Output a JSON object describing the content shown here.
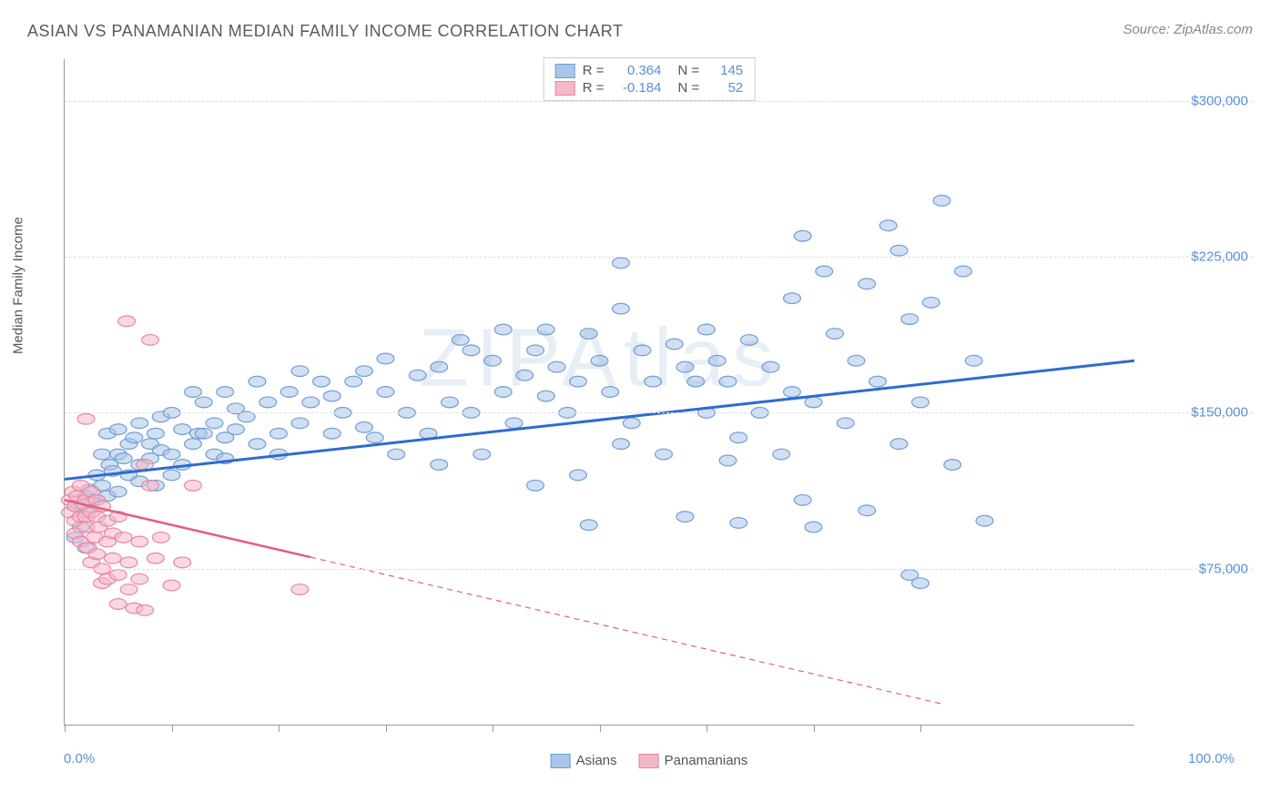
{
  "title": "ASIAN VS PANAMANIAN MEDIAN FAMILY INCOME CORRELATION CHART",
  "source": "Source: ZipAtlas.com",
  "watermark": "ZIPAtlas",
  "chart": {
    "type": "scatter",
    "ylabel": "Median Family Income",
    "xlim": [
      0,
      100
    ],
    "ylim": [
      0,
      320000
    ],
    "y_ticks": [
      {
        "value": 75000,
        "label": "$75,000"
      },
      {
        "value": 150000,
        "label": "$150,000"
      },
      {
        "value": 225000,
        "label": "$225,000"
      },
      {
        "value": 300000,
        "label": "$300,000"
      }
    ],
    "x_ticks_pct": [
      0,
      10,
      20,
      30,
      40,
      50,
      60,
      70,
      80
    ],
    "x_axis_left_label": "0.0%",
    "x_axis_right_label": "100.0%",
    "background_color": "#ffffff",
    "grid_color": "#dddddd",
    "axis_color": "#999999",
    "label_color": "#555555",
    "value_color": "#5b8fd6",
    "marker_radius": 8,
    "marker_opacity": 0.55,
    "series": [
      {
        "name": "Asians",
        "color_fill": "#a9c5e8",
        "color_stroke": "#6f9ed6",
        "r_stat": "0.364",
        "n_stat": "145",
        "trend": {
          "x1": 0,
          "y1": 118000,
          "x2": 100,
          "y2": 175000,
          "solid_to_x": 100,
          "stroke": "#2e6bd1",
          "width": 3
        },
        "points": [
          [
            1,
            90000
          ],
          [
            1,
            105000
          ],
          [
            1.5,
            95000
          ],
          [
            2,
            110000
          ],
          [
            2,
            102000
          ],
          [
            2,
            85000
          ],
          [
            2.3,
            113000
          ],
          [
            2.5,
            107000
          ],
          [
            3,
            120000
          ],
          [
            3,
            108000
          ],
          [
            3.5,
            130000
          ],
          [
            3.5,
            115000
          ],
          [
            4,
            110000
          ],
          [
            4,
            140000
          ],
          [
            4.2,
            125000
          ],
          [
            4.5,
            122000
          ],
          [
            5,
            130000
          ],
          [
            5,
            112000
          ],
          [
            5,
            142000
          ],
          [
            5.5,
            128000
          ],
          [
            6,
            135000
          ],
          [
            6,
            120000
          ],
          [
            6.5,
            138000
          ],
          [
            7,
            125000
          ],
          [
            7,
            117000
          ],
          [
            7,
            145000
          ],
          [
            8,
            135000
          ],
          [
            8,
            128000
          ],
          [
            8.5,
            115000
          ],
          [
            8.5,
            140000
          ],
          [
            9,
            132000
          ],
          [
            9,
            148000
          ],
          [
            10,
            150000
          ],
          [
            10,
            130000
          ],
          [
            10,
            120000
          ],
          [
            11,
            142000
          ],
          [
            11,
            125000
          ],
          [
            12,
            160000
          ],
          [
            12,
            135000
          ],
          [
            12.5,
            140000
          ],
          [
            13,
            140000
          ],
          [
            13,
            155000
          ],
          [
            14,
            145000
          ],
          [
            14,
            130000
          ],
          [
            15,
            138000
          ],
          [
            15,
            160000
          ],
          [
            15,
            128000
          ],
          [
            16,
            142000
          ],
          [
            16,
            152000
          ],
          [
            17,
            148000
          ],
          [
            18,
            135000
          ],
          [
            18,
            165000
          ],
          [
            19,
            155000
          ],
          [
            20,
            140000
          ],
          [
            20,
            130000
          ],
          [
            21,
            160000
          ],
          [
            22,
            170000
          ],
          [
            22,
            145000
          ],
          [
            23,
            155000
          ],
          [
            24,
            165000
          ],
          [
            25,
            158000
          ],
          [
            25,
            140000
          ],
          [
            26,
            150000
          ],
          [
            27,
            165000
          ],
          [
            28,
            170000
          ],
          [
            28,
            143000
          ],
          [
            29,
            138000
          ],
          [
            30,
            176000
          ],
          [
            30,
            160000
          ],
          [
            31,
            130000
          ],
          [
            32,
            150000
          ],
          [
            33,
            168000
          ],
          [
            34,
            140000
          ],
          [
            35,
            172000
          ],
          [
            35,
            125000
          ],
          [
            36,
            155000
          ],
          [
            37,
            185000
          ],
          [
            38,
            180000
          ],
          [
            38,
            150000
          ],
          [
            39,
            130000
          ],
          [
            40,
            175000
          ],
          [
            41,
            190000
          ],
          [
            41,
            160000
          ],
          [
            42,
            145000
          ],
          [
            43,
            168000
          ],
          [
            44,
            180000
          ],
          [
            44,
            115000
          ],
          [
            45,
            190000
          ],
          [
            45,
            158000
          ],
          [
            46,
            172000
          ],
          [
            47,
            150000
          ],
          [
            48,
            165000
          ],
          [
            48,
            120000
          ],
          [
            49,
            188000
          ],
          [
            49,
            96000
          ],
          [
            50,
            175000
          ],
          [
            51,
            160000
          ],
          [
            52,
            135000
          ],
          [
            52,
            200000
          ],
          [
            52,
            222000
          ],
          [
            53,
            145000
          ],
          [
            54,
            180000
          ],
          [
            55,
            165000
          ],
          [
            56,
            130000
          ],
          [
            57,
            183000
          ],
          [
            58,
            100000
          ],
          [
            58,
            172000
          ],
          [
            59,
            165000
          ],
          [
            60,
            150000
          ],
          [
            60,
            190000
          ],
          [
            61,
            175000
          ],
          [
            62,
            127000
          ],
          [
            62,
            165000
          ],
          [
            63,
            138000
          ],
          [
            63,
            97000
          ],
          [
            64,
            185000
          ],
          [
            65,
            150000
          ],
          [
            66,
            172000
          ],
          [
            67,
            130000
          ],
          [
            68,
            205000
          ],
          [
            68,
            160000
          ],
          [
            69,
            108000
          ],
          [
            69,
            235000
          ],
          [
            70,
            155000
          ],
          [
            70,
            95000
          ],
          [
            71,
            218000
          ],
          [
            72,
            188000
          ],
          [
            73,
            145000
          ],
          [
            74,
            175000
          ],
          [
            75,
            212000
          ],
          [
            75,
            103000
          ],
          [
            76,
            165000
          ],
          [
            77,
            240000
          ],
          [
            78,
            135000
          ],
          [
            78,
            228000
          ],
          [
            79,
            195000
          ],
          [
            79,
            72000
          ],
          [
            80,
            155000
          ],
          [
            80,
            68000
          ],
          [
            81,
            203000
          ],
          [
            82,
            252000
          ],
          [
            83,
            125000
          ],
          [
            84,
            218000
          ],
          [
            85,
            175000
          ],
          [
            86,
            98000
          ]
        ]
      },
      {
        "name": "Panamanians",
        "color_fill": "#f4b8c8",
        "color_stroke": "#e886a3",
        "r_stat": "-0.184",
        "n_stat": "52",
        "trend": {
          "x1": 0,
          "y1": 108000,
          "x2": 82,
          "y2": 10000,
          "solid_to_x": 23,
          "stroke": "#e55b8a",
          "width": 2.5
        },
        "points": [
          [
            0.5,
            108000
          ],
          [
            0.5,
            102000
          ],
          [
            0.8,
            112000
          ],
          [
            1,
            105000
          ],
          [
            1,
            98000
          ],
          [
            1,
            92000
          ],
          [
            1.2,
            110000
          ],
          [
            1.5,
            100000
          ],
          [
            1.5,
            115000
          ],
          [
            1.5,
            88000
          ],
          [
            1.8,
            106000
          ],
          [
            2,
            108000
          ],
          [
            2,
            95000
          ],
          [
            2,
            100000
          ],
          [
            2,
            147000
          ],
          [
            2.2,
            85000
          ],
          [
            2.5,
            102000
          ],
          [
            2.5,
            112000
          ],
          [
            2.5,
            78000
          ],
          [
            2.8,
            90000
          ],
          [
            3,
            100000
          ],
          [
            3,
            82000
          ],
          [
            3,
            108000
          ],
          [
            3.2,
            95000
          ],
          [
            3.5,
            75000
          ],
          [
            3.5,
            105000
          ],
          [
            3.5,
            68000
          ],
          [
            4,
            98000
          ],
          [
            4,
            88000
          ],
          [
            4,
            70000
          ],
          [
            4.5,
            92000
          ],
          [
            4.5,
            80000
          ],
          [
            5,
            100000
          ],
          [
            5,
            72000
          ],
          [
            5,
            58000
          ],
          [
            5.5,
            90000
          ],
          [
            5.8,
            194000
          ],
          [
            6,
            78000
          ],
          [
            6,
            65000
          ],
          [
            6.5,
            56000
          ],
          [
            7,
            88000
          ],
          [
            7,
            70000
          ],
          [
            7.5,
            125000
          ],
          [
            7.5,
            55000
          ],
          [
            8,
            115000
          ],
          [
            8,
            185000
          ],
          [
            8.5,
            80000
          ],
          [
            9,
            90000
          ],
          [
            10,
            67000
          ],
          [
            11,
            78000
          ],
          [
            12,
            115000
          ],
          [
            22,
            65000
          ]
        ]
      }
    ]
  },
  "legend_bottom": [
    {
      "label": "Asians",
      "fill": "#a9c5e8",
      "stroke": "#6f9ed6"
    },
    {
      "label": "Panamanians",
      "fill": "#f4b8c8",
      "stroke": "#e886a3"
    }
  ]
}
